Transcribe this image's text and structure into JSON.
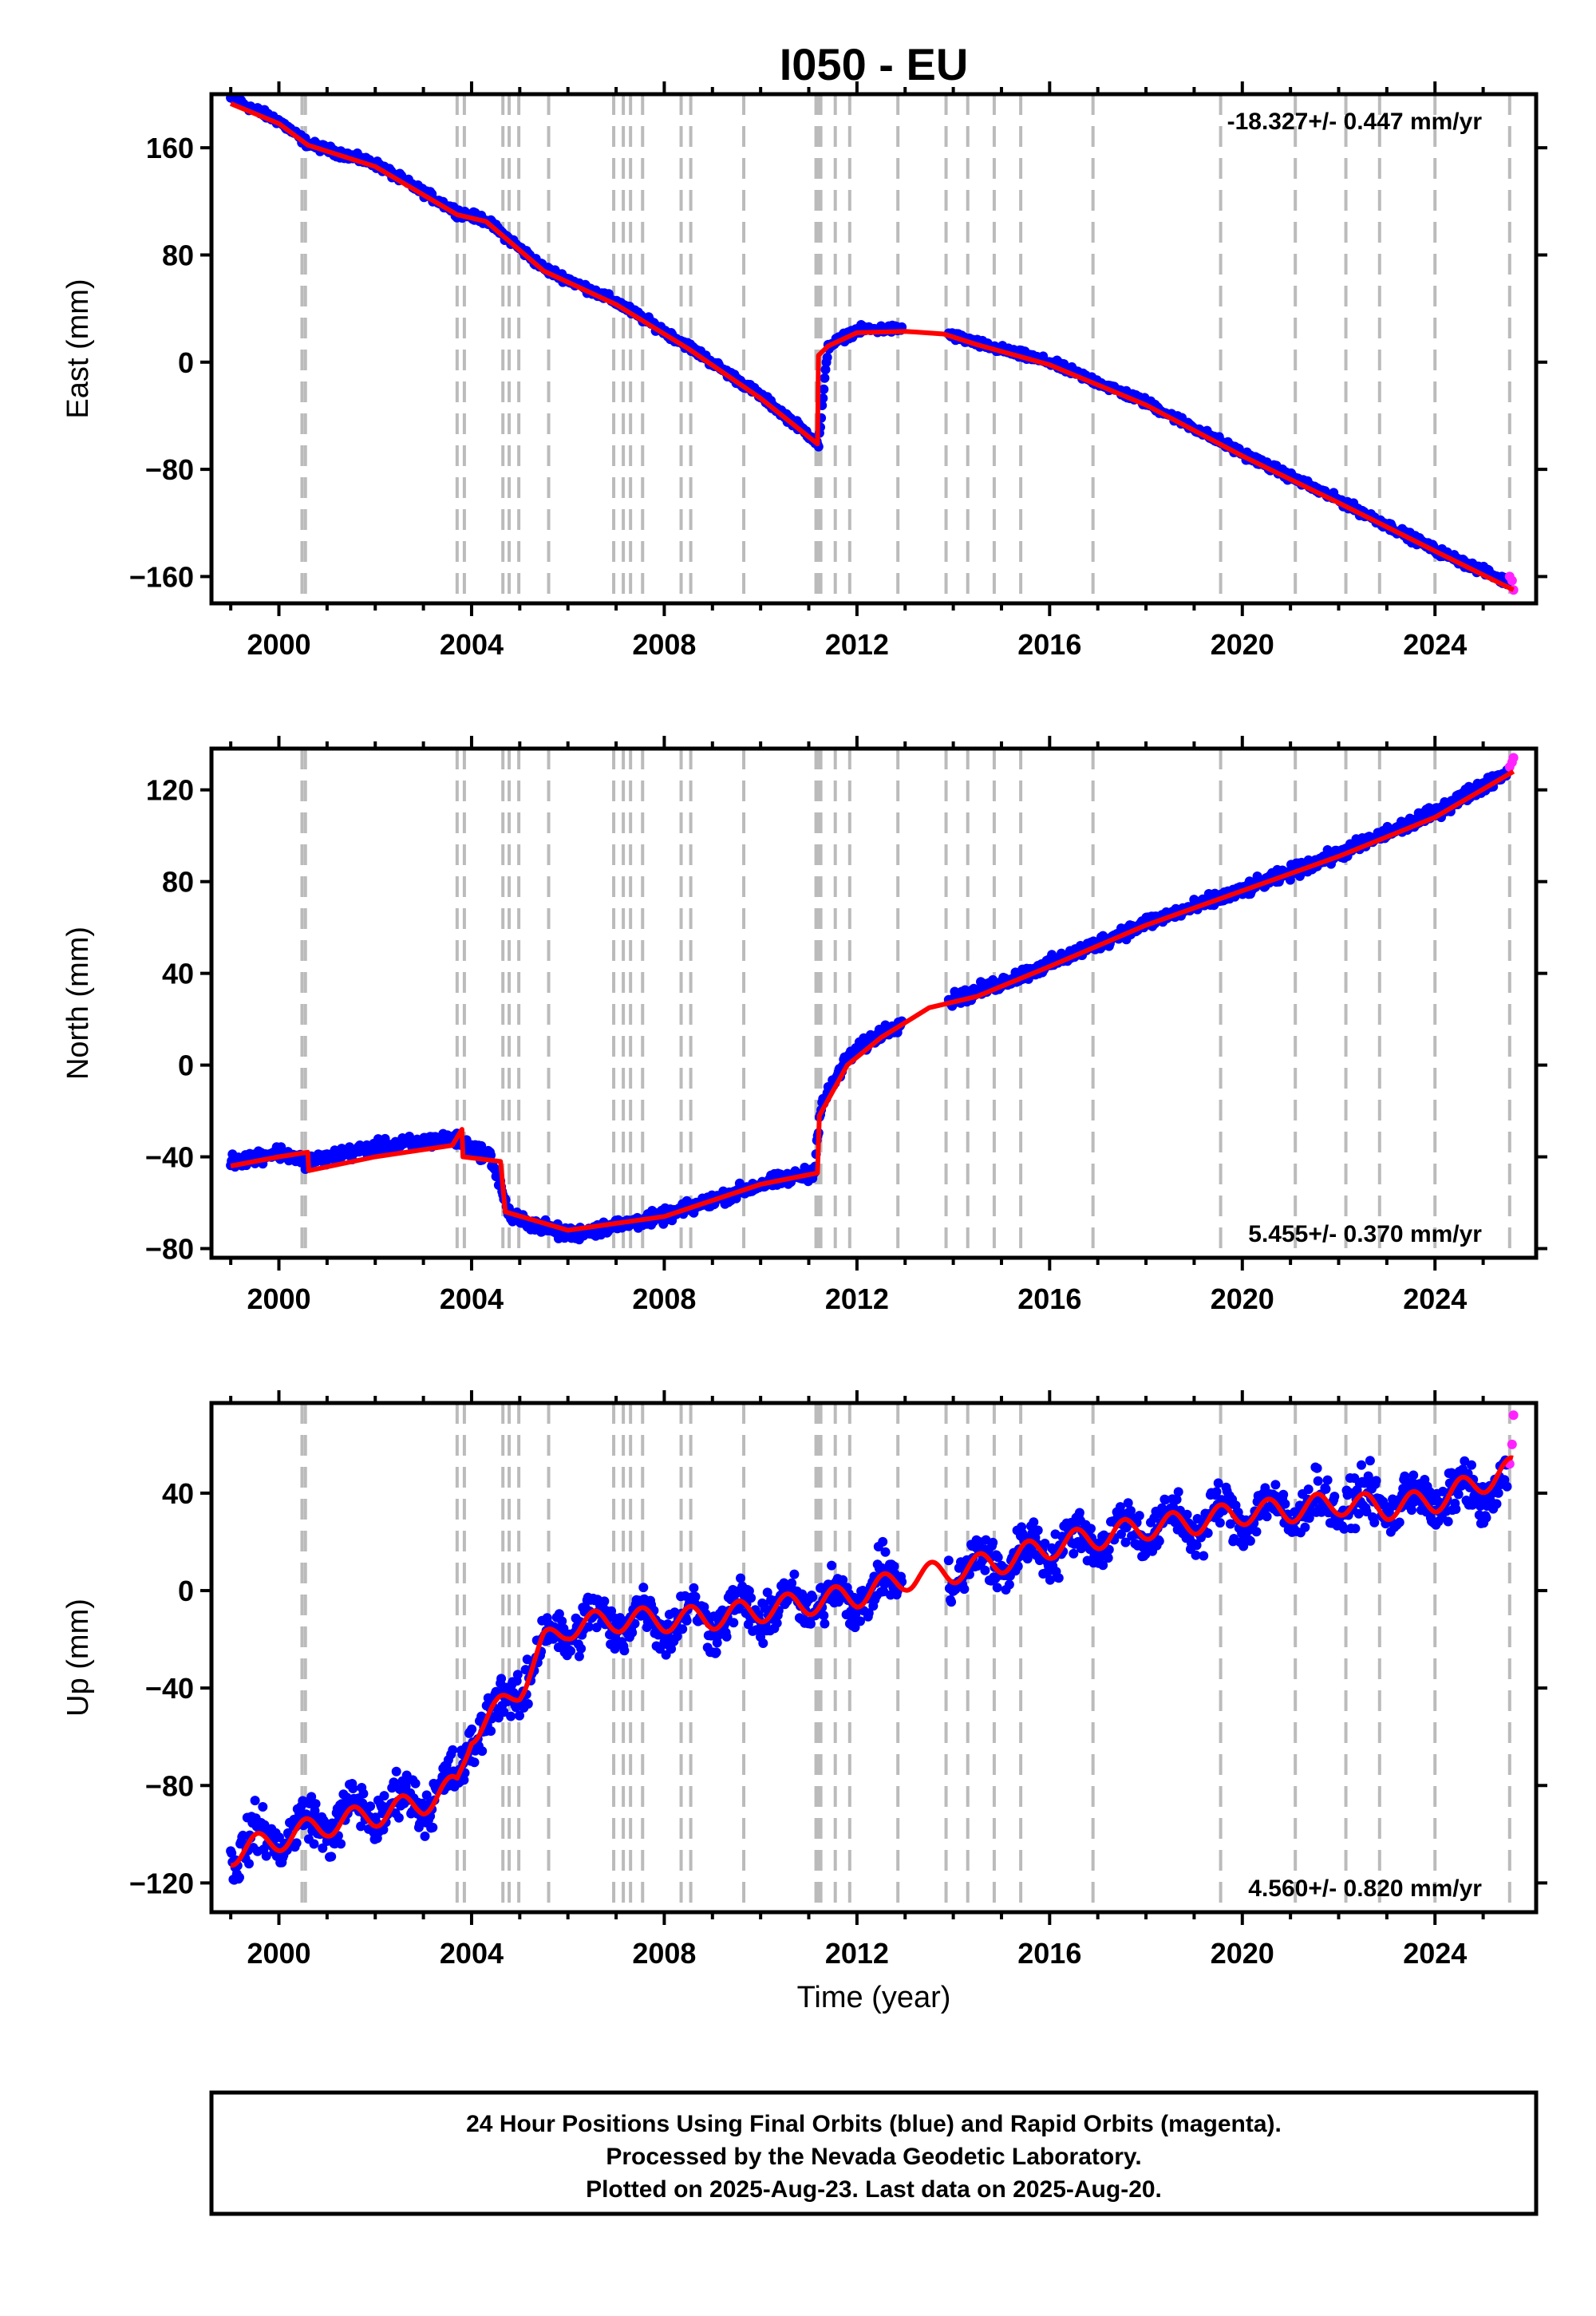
{
  "figure": {
    "title": "I050 - EU",
    "xlabel": "Time (year)",
    "x_ticks": [
      2000,
      2004,
      2008,
      2012,
      2016,
      2020,
      2024
    ],
    "event_lines": [
      2000.48,
      2000.55,
      2003.7,
      2003.85,
      2004.65,
      2004.78,
      2004.98,
      2005.6,
      2006.95,
      2007.15,
      2007.3,
      2007.55,
      2008.35,
      2008.55,
      2009.65,
      2011.15,
      2011.2,
      2011.25,
      2011.55,
      2011.85,
      2012.85,
      2013.85,
      2014.3,
      2014.85,
      2015.4,
      2016.9,
      2019.55,
      2021.1,
      2022.15,
      2022.85,
      2024.0,
      2025.55
    ],
    "colors": {
      "final": "#0000ff",
      "rapid": "#ff22ff",
      "model": "#ff0000",
      "event": "#bbbbbb",
      "frame": "#000000"
    }
  },
  "caption": {
    "lines": [
      "24 Hour Positions Using Final Orbits (blue) and Rapid Orbits (magenta).",
      "Processed by the Nevada Geodetic Laboratory.",
      "Plotted on 2025-Aug-23. Last data on 2025-Aug-20."
    ]
  },
  "chart_data": [
    {
      "type": "scatter",
      "ylabel": "East (mm)",
      "rate_label": "-18.327+/- 0.447 mm/yr",
      "rate_position": "top-right",
      "xlim": [
        1998.6,
        2026.1
      ],
      "ylim": [
        -180,
        200
      ],
      "y_ticks": [
        -160,
        -80,
        0,
        80,
        160
      ],
      "grid": false,
      "series": [
        {
          "name": "final orbits",
          "x": [
            1999.0,
            2000.0,
            2000.6,
            2002.0,
            2003.7,
            2004.3,
            2005.5,
            2007.0,
            2008.5,
            2010.0,
            2011.1,
            2011.2,
            2011.4,
            2012.0,
            2013.0,
            2013.8,
            2014.5,
            2016.0,
            2018.0,
            2020.0,
            2022.0,
            2024.0,
            2025.5
          ],
          "y": [
            197,
            180,
            163,
            148,
            112,
            106,
            70,
            45,
            12,
            -25,
            -57,
            -63,
            12,
            24,
            25,
            22,
            14,
            0,
            -30,
            -68,
            -103,
            -140,
            -164
          ]
        },
        {
          "name": "rapid orbits",
          "x": [
            2025.55,
            2025.6,
            2025.63
          ],
          "y": [
            -160,
            -163,
            -170
          ]
        }
      ],
      "model": {
        "x": [
          1999.0,
          2000.0,
          2000.6,
          2002.0,
          2003.7,
          2004.3,
          2005.5,
          2007.0,
          2008.5,
          2010.0,
          2011.18,
          2011.2,
          2011.4,
          2012.0,
          2013.0,
          2013.8,
          2014.5,
          2016.0,
          2018.0,
          2020.0,
          2022.0,
          2024.0,
          2025.63
        ],
        "y": [
          193,
          178,
          162,
          146,
          110,
          105,
          68,
          43,
          10,
          -27,
          -61,
          5,
          12,
          22,
          23,
          21,
          13,
          -2,
          -32,
          -70,
          -105,
          -141,
          -170
        ]
      }
    },
    {
      "type": "scatter",
      "ylabel": "North (mm)",
      "rate_label": "5.455+/- 0.370 mm/yr",
      "rate_position": "bottom-right",
      "xlim": [
        1998.6,
        2026.1
      ],
      "ylim": [
        -84,
        138
      ],
      "y_ticks": [
        -80,
        -40,
        0,
        40,
        80,
        120
      ],
      "grid": false,
      "series": [
        {
          "name": "final orbits",
          "x": [
            1999.0,
            2000.0,
            2000.6,
            2002.0,
            2003.6,
            2004.4,
            2004.8,
            2006.0,
            2008.0,
            2010.0,
            2011.1,
            2011.25,
            2011.8,
            2012.5,
            2013.5,
            2014.5,
            2016.0,
            2018.0,
            2020.0,
            2022.0,
            2024.0,
            2025.5
          ],
          "y": [
            -42,
            -38,
            -42,
            -36,
            -32,
            -40,
            -66,
            -74,
            -66,
            -52,
            -47,
            -18,
            3,
            14,
            25,
            32,
            44,
            62,
            76,
            92,
            110,
            128
          ]
        },
        {
          "name": "rapid orbits",
          "x": [
            2025.55,
            2025.6,
            2025.63
          ],
          "y": [
            130,
            132,
            134
          ]
        }
      ],
      "model": {
        "x": [
          1999.0,
          2000.0,
          2000.6,
          2000.62,
          2002.0,
          2003.6,
          2003.8,
          2003.82,
          2004.6,
          2004.7,
          2006.0,
          2008.0,
          2010.0,
          2011.18,
          2011.22,
          2011.8,
          2012.5,
          2013.5,
          2014.5,
          2016.0,
          2018.0,
          2020.0,
          2022.0,
          2024.0,
          2025.63
        ],
        "y": [
          -44,
          -40,
          -38,
          -46,
          -40,
          -35,
          -28,
          -40,
          -42,
          -64,
          -72,
          -66,
          -52,
          -47,
          -22,
          0,
          12,
          25,
          30,
          43,
          61,
          76,
          91,
          108,
          128
        ]
      }
    },
    {
      "type": "scatter",
      "ylabel": "Up (mm)",
      "rate_label": "4.560+/- 0.820 mm/yr",
      "rate_position": "bottom-right",
      "xlim": [
        1998.6,
        2026.1
      ],
      "ylim": [
        -132,
        77
      ],
      "y_ticks": [
        -120,
        -80,
        -40,
        0,
        40
      ],
      "grid": false,
      "series": [
        {
          "name": "final orbits",
          "x": [
            1999.0,
            2000.0,
            2001.0,
            2002.0,
            2003.0,
            2003.7,
            2004.0,
            2004.5,
            2005.0,
            2005.5,
            2006.0,
            2007.0,
            2008.0,
            2009.0,
            2010.0,
            2011.0,
            2012.0,
            2013.0,
            2014.0,
            2015.0,
            2016.0,
            2017.0,
            2018.0,
            2019.0,
            2020.0,
            2021.0,
            2022.0,
            2023.0,
            2024.0,
            2025.5
          ],
          "y": [
            -107,
            -100,
            -95,
            -90,
            -85,
            -80,
            -58,
            -50,
            -40,
            -22,
            -15,
            -12,
            -12,
            -11,
            -8,
            -5,
            -2,
            5,
            8,
            12,
            18,
            22,
            26,
            28,
            32,
            33,
            36,
            36,
            37,
            42
          ]
        },
        {
          "name": "rapid orbits",
          "x": [
            2025.55,
            2025.6,
            2025.63
          ],
          "y": [
            52,
            60,
            72
          ]
        }
      ],
      "model": {
        "x": [
          1999.0,
          2000.0,
          2001.0,
          2002.0,
          2003.0,
          2003.7,
          2004.0,
          2004.5,
          2005.0,
          2005.5,
          2006.0,
          2007.0,
          2008.0,
          2009.0,
          2010.0,
          2011.0,
          2012.0,
          2013.0,
          2014.0,
          2015.0,
          2016.0,
          2017.0,
          2018.0,
          2019.0,
          2020.0,
          2021.0,
          2022.0,
          2023.0,
          2024.0,
          2025.63
        ],
        "y": [
          -108,
          -102,
          -96,
          -92,
          -87,
          -80,
          -58,
          -50,
          -40,
          -22,
          -15,
          -12,
          -12,
          -11,
          -8,
          -5,
          -2,
          5,
          8,
          12,
          18,
          22,
          26,
          28,
          32,
          33,
          36,
          34,
          37,
          50
        ]
      }
    }
  ]
}
